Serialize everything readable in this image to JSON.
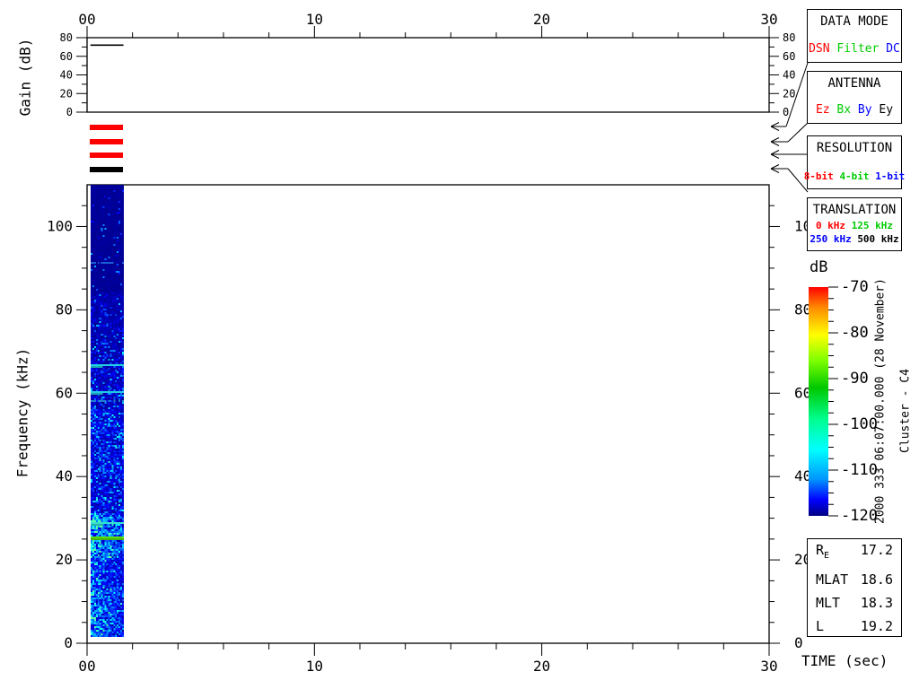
{
  "chart_data": {
    "type": "heatmap",
    "xlabel": "TIME (sec)",
    "xlim": [
      0,
      30
    ],
    "xticks": [
      0,
      10,
      20,
      30
    ],
    "xtick_labels": [
      "00",
      "10",
      "20",
      "30"
    ],
    "xtick_minor_step": 2,
    "panels": [
      {
        "id": "gain",
        "ylabel": "Gain (dB)",
        "ylim": [
          0,
          80
        ],
        "yticks": [
          0,
          20,
          40,
          60,
          80
        ],
        "yticks_minor": [
          10,
          30,
          50,
          70
        ],
        "series": [
          {
            "name": "agc-gain-trace",
            "x": [
              0.15,
              1.6
            ],
            "y": [
              72,
              72
            ],
            "color": "#000000"
          }
        ]
      },
      {
        "id": "spectrogram",
        "ylabel": "Frequency (kHz)",
        "ylim": [
          0,
          110
        ],
        "yticks": [
          0,
          20,
          40,
          60,
          80,
          100
        ],
        "ytick_minor_step": 5,
        "data_time_extent_sec": [
          0.15,
          1.62
        ],
        "data_freq_extent_khz": [
          1.5,
          108.5
        ],
        "noise_floor_db": -120,
        "spectral_lines": [
          {
            "freq_khz": 90.0,
            "style": "dashed-faint",
            "color": "#1a5fd6"
          },
          {
            "freq_khz": 65.4,
            "style": "solid",
            "color": "#21d3e0"
          },
          {
            "freq_khz": 59.0,
            "style": "solid",
            "color": "#25c8e0"
          },
          {
            "freq_khz": 57.0,
            "style": "dashed-faint",
            "color": "#1f7fd0"
          },
          {
            "freq_khz": 27.5,
            "style": "solid",
            "color": "#35e0d0"
          },
          {
            "freq_khz": 24.0,
            "style": "solid-bright",
            "color": "#5ade12"
          }
        ]
      }
    ],
    "colorbar": {
      "label": "dB",
      "range_db": [
        -120,
        -70
      ],
      "ticks": [
        -70,
        -80,
        -90,
        -100,
        -110,
        -120
      ],
      "minor_step": 2.5,
      "gradient_top_to_bottom": [
        "#ff0000",
        "#ff8c00",
        "#ffff00",
        "#7fff00",
        "#00c800",
        "#00ff91",
        "#00ffff",
        "#0096ff",
        "#0000ff",
        "#000082"
      ]
    }
  },
  "right_panels": {
    "data_mode": {
      "title": "DATA MODE",
      "options": [
        {
          "label": "DSN",
          "color": "#ff0000"
        },
        {
          "label": "Filter",
          "color": "#00cc00"
        },
        {
          "label": "DC",
          "color": "#0000ff"
        }
      ]
    },
    "antenna": {
      "title": "ANTENNA",
      "options": [
        {
          "label": "Ez",
          "color": "#ff0000"
        },
        {
          "label": "Bx",
          "color": "#00cc00"
        },
        {
          "label": "By",
          "color": "#0000ff"
        },
        {
          "label": "Ey",
          "color": "#000000"
        }
      ]
    },
    "resolution": {
      "title": "RESOLUTION",
      "options": [
        {
          "label": "8-bit",
          "color": "#ff0000"
        },
        {
          "label": "4-bit",
          "color": "#00cc00"
        },
        {
          "label": "1-bit",
          "color": "#0000ff"
        }
      ]
    },
    "translation": {
      "title": "TRANSLATION",
      "rows": [
        [
          {
            "label": "0 kHz",
            "color": "#ff0000"
          },
          {
            "label": "125 kHz",
            "color": "#00cc00"
          }
        ],
        [
          {
            "label": "250 kHz",
            "color": "#0000ff"
          },
          {
            "label": "500 kHz",
            "color": "#000000"
          }
        ]
      ]
    }
  },
  "status_bars": [
    {
      "name": "data-mode-status",
      "color": "#ff0000"
    },
    {
      "name": "antenna-status",
      "color": "#ff0000"
    },
    {
      "name": "resolution-status",
      "color": "#ff0000"
    },
    {
      "name": "translation-status",
      "color": "#000000"
    }
  ],
  "annotations": {
    "timestamp_vertical": "2000 333 06:07:00.000 (28 November)",
    "spacecraft_vertical": "Cluster - C4"
  },
  "info_panel": {
    "rows": [
      {
        "label": "R",
        "label_sub": "E",
        "value": "17.2"
      },
      {
        "label": "MLAT",
        "label_sub": "",
        "value": "18.6"
      },
      {
        "label": "MLT",
        "label_sub": "",
        "value": "18.3"
      },
      {
        "label": "L",
        "label_sub": "",
        "value": "19.2"
      }
    ]
  }
}
